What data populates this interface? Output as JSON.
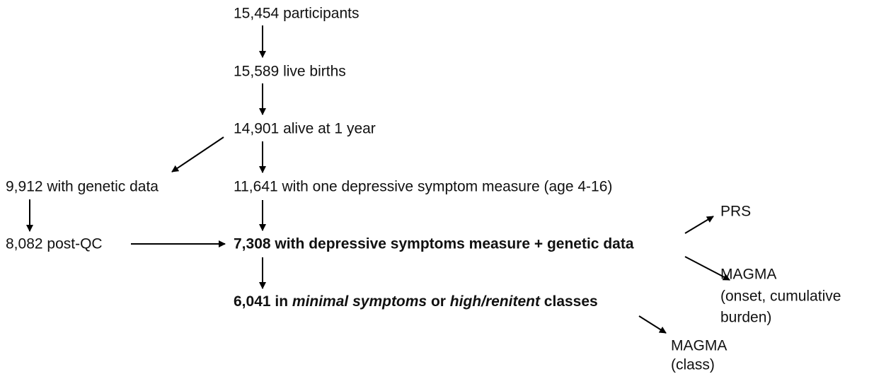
{
  "nodes": [
    {
      "label": "15,454 participants"
    },
    {
      "label": "15,589 live births"
    },
    {
      "label": "14,901 alive at 1 year"
    },
    {
      "label": "9,912 with genetic data"
    },
    {
      "label": "11,641 with one depressive symptom measure (age 4-16)"
    },
    {
      "label": "8,082 post-QC"
    },
    {
      "label": "7,308 with depressive symptoms measure + genetic data"
    },
    {
      "parts": [
        "6,041 in ",
        "minimal symptoms",
        " or ",
        "high/renitent",
        " classes"
      ]
    },
    {
      "label": "PRS"
    },
    {
      "lines": [
        "MAGMA",
        "(onset, cumulative",
        "burden)"
      ]
    },
    {
      "lines": [
        "MAGMA",
        "(class)"
      ]
    }
  ]
}
